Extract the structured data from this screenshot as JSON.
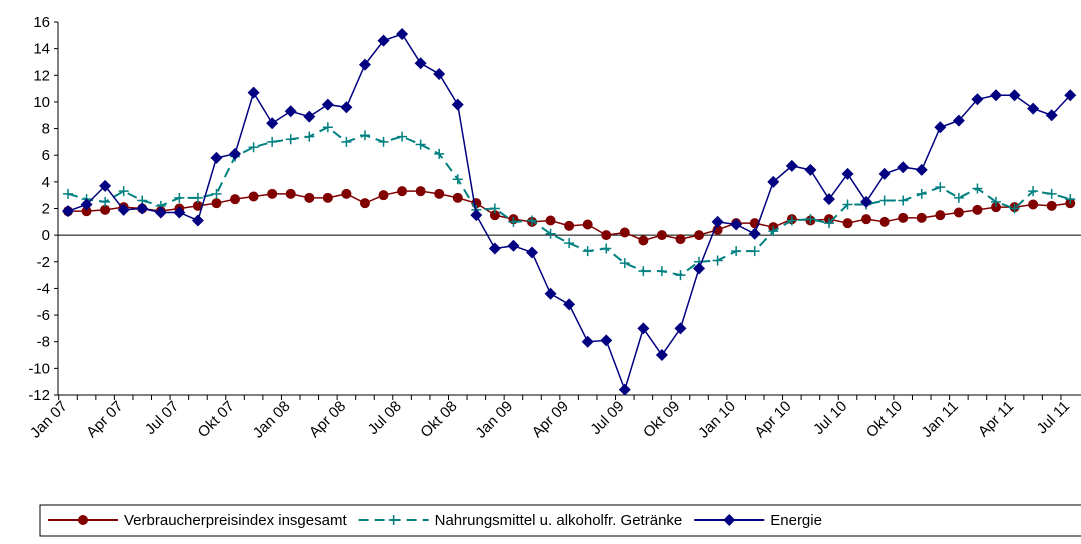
{
  "chart_data": {
    "type": "line",
    "categories": [
      "Jan 07",
      null,
      null,
      "Apr 07",
      null,
      null,
      "Jul 07",
      null,
      null,
      "Okt 07",
      null,
      null,
      "Jan 08",
      null,
      null,
      "Apr 08",
      null,
      null,
      "Jul 08",
      null,
      null,
      "Okt 08",
      null,
      null,
      "Jan 09",
      null,
      null,
      "Apr 09",
      null,
      null,
      "Jul 09",
      null,
      null,
      "Okt 09",
      null,
      null,
      "Jan 10",
      null,
      null,
      "Apr 10",
      null,
      null,
      "Jul 10",
      null,
      null,
      "Okt 10",
      null,
      null,
      "Jan 11",
      null,
      null,
      "Apr 11",
      null,
      null,
      "Jul 11"
    ],
    "series": [
      {
        "name": "Verbraucherpreisindex insgesamt",
        "color": "#800000",
        "marker": "circle",
        "dash": false,
        "values": [
          1.8,
          1.8,
          1.9,
          2.1,
          2.0,
          1.8,
          2.0,
          2.2,
          2.4,
          2.7,
          2.9,
          3.1,
          3.1,
          2.8,
          2.8,
          3.1,
          2.4,
          3.0,
          3.3,
          3.3,
          3.1,
          2.8,
          2.4,
          1.5,
          1.2,
          1.0,
          1.1,
          0.7,
          0.8,
          0.0,
          0.2,
          -0.4,
          0.0,
          -0.3,
          0.0,
          0.4,
          0.9,
          0.9,
          0.6,
          1.2,
          1.1,
          1.2,
          0.9,
          1.2,
          1.0,
          1.3,
          1.3,
          1.5,
          1.7,
          1.9,
          2.1,
          2.1,
          2.3,
          2.2,
          2.4
        ]
      },
      {
        "name": "Nahrungsmittel u. alkoholfr. Getränke",
        "color": "#008080",
        "marker": "plus",
        "dash": true,
        "values": [
          3.1,
          2.7,
          2.5,
          3.3,
          2.6,
          2.2,
          2.8,
          2.8,
          3.1,
          5.9,
          6.6,
          7.0,
          7.2,
          7.4,
          8.1,
          7.0,
          7.5,
          7.0,
          7.4,
          6.8,
          6.1,
          4.2,
          1.9,
          2.0,
          1.0,
          1.1,
          0.1,
          -0.6,
          -1.2,
          -1.0,
          -2.1,
          -2.7,
          -2.7,
          -3.0,
          -2.0,
          -1.9,
          -1.2,
          -1.2,
          0.3,
          1.1,
          1.2,
          0.9,
          2.3,
          2.3,
          2.6,
          2.6,
          3.1,
          3.6,
          2.8,
          3.5,
          2.5,
          2.0,
          3.3,
          3.1,
          2.7
        ]
      },
      {
        "name": "Energie",
        "color": "#000080",
        "marker": "diamond",
        "dash": false,
        "values": [
          1.8,
          2.3,
          3.7,
          1.9,
          2.0,
          1.7,
          1.7,
          1.1,
          5.8,
          6.1,
          10.7,
          8.4,
          9.3,
          8.9,
          9.8,
          9.6,
          12.8,
          14.6,
          15.1,
          12.9,
          12.1,
          9.8,
          1.5,
          -1.0,
          -0.8,
          -1.3,
          -4.4,
          -5.2,
          -8.0,
          -7.9,
          -11.6,
          -7.0,
          -9.0,
          -7.0,
          -2.5,
          1.0,
          0.8,
          0.1,
          4.0,
          5.2,
          4.9,
          2.7,
          4.6,
          2.5,
          4.6,
          5.1,
          4.9,
          8.1,
          8.6,
          10.2,
          10.5,
          10.5,
          9.5,
          9.0,
          10.5
        ]
      }
    ],
    "ylim": [
      -12,
      16
    ],
    "yticks": [
      -12,
      -10,
      -8,
      -6,
      -4,
      -2,
      0,
      2,
      4,
      6,
      8,
      10,
      12,
      14,
      16
    ],
    "grid": false,
    "legend": "bottom"
  }
}
